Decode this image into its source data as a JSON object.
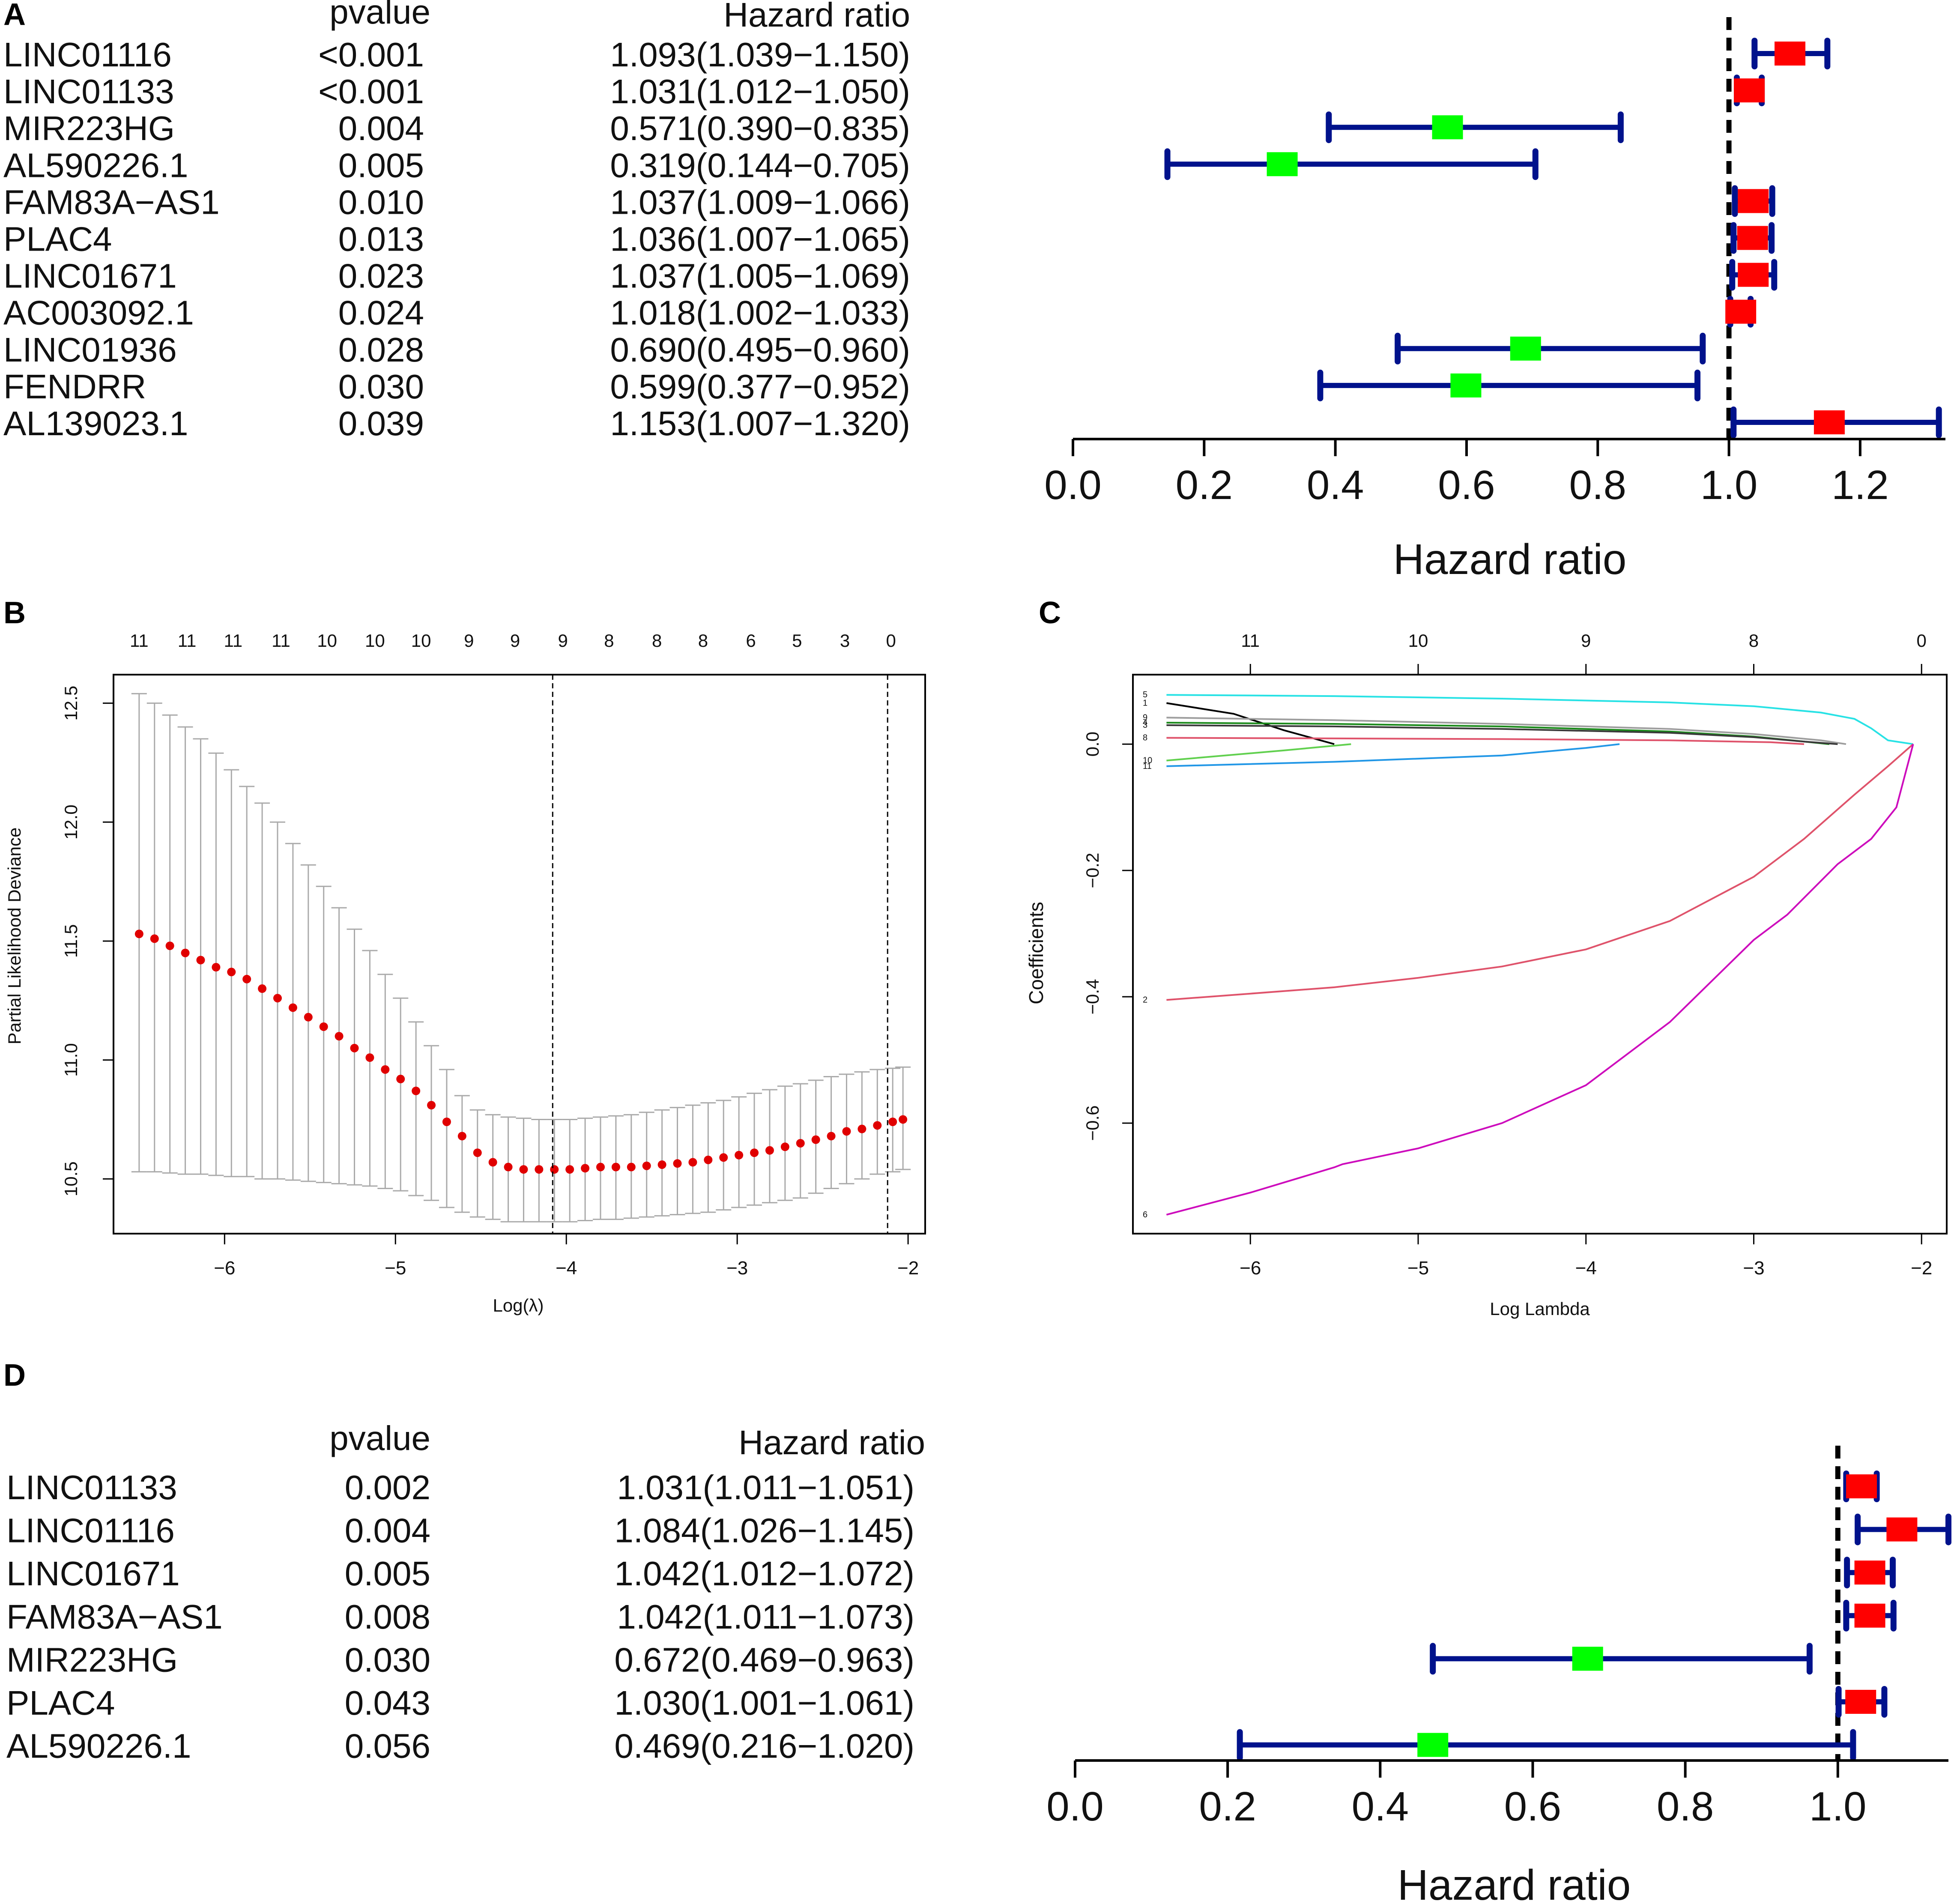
{
  "panels": {
    "A": {
      "letter": "A"
    },
    "B": {
      "letter": "B"
    },
    "C": {
      "letter": "C"
    },
    "D": {
      "letter": "D"
    }
  },
  "colors": {
    "ci_line": "#00128c",
    "risk_box": "#ff0000",
    "protective_box": "#00ff00",
    "cv_point": "#e00000",
    "cv_error": "#aaaaaa"
  },
  "chart_data": [
    {
      "id": "A",
      "type": "forest",
      "col_pvalue_header": "pvalue",
      "col_hr_header": "Hazard ratio",
      "xlabel": "Hazard ratio",
      "xlim": [
        0.0,
        1.33
      ],
      "xticks": [
        "0.0",
        "0.2",
        "0.4",
        "0.6",
        "0.8",
        "1.0",
        "1.2"
      ],
      "xtick_values": [
        0.0,
        0.2,
        0.4,
        0.6,
        0.8,
        1.0,
        1.2
      ],
      "reference_line": 1.0,
      "rows": [
        {
          "gene": "LINC01116",
          "pvalue": "<0.001",
          "hr_text": "1.093(1.039−1.150)",
          "hr": 1.093,
          "low": 1.039,
          "high": 1.15
        },
        {
          "gene": "LINC01133",
          "pvalue": "<0.001",
          "hr_text": "1.031(1.012−1.050)",
          "hr": 1.031,
          "low": 1.012,
          "high": 1.05
        },
        {
          "gene": "MIR223HG",
          "pvalue": "0.004",
          "hr_text": "0.571(0.390−0.835)",
          "hr": 0.571,
          "low": 0.39,
          "high": 0.835
        },
        {
          "gene": "AL590226.1",
          "pvalue": "0.005",
          "hr_text": "0.319(0.144−0.705)",
          "hr": 0.319,
          "low": 0.144,
          "high": 0.705
        },
        {
          "gene": "FAM83A−AS1",
          "pvalue": "0.010",
          "hr_text": "1.037(1.009−1.066)",
          "hr": 1.037,
          "low": 1.009,
          "high": 1.066
        },
        {
          "gene": "PLAC4",
          "pvalue": "0.013",
          "hr_text": "1.036(1.007−1.065)",
          "hr": 1.036,
          "low": 1.007,
          "high": 1.065
        },
        {
          "gene": "LINC01671",
          "pvalue": "0.023",
          "hr_text": "1.037(1.005−1.069)",
          "hr": 1.037,
          "low": 1.005,
          "high": 1.069
        },
        {
          "gene": "AC003092.1",
          "pvalue": "0.024",
          "hr_text": "1.018(1.002−1.033)",
          "hr": 1.018,
          "low": 1.002,
          "high": 1.033
        },
        {
          "gene": "LINC01936",
          "pvalue": "0.028",
          "hr_text": "0.690(0.495−0.960)",
          "hr": 0.69,
          "low": 0.495,
          "high": 0.96
        },
        {
          "gene": "FENDRR",
          "pvalue": "0.030",
          "hr_text": "0.599(0.377−0.952)",
          "hr": 0.599,
          "low": 0.377,
          "high": 0.952
        },
        {
          "gene": "AL139023.1",
          "pvalue": "0.039",
          "hr_text": "1.153(1.007−1.320)",
          "hr": 1.153,
          "low": 1.007,
          "high": 1.32
        }
      ]
    },
    {
      "id": "B",
      "type": "scatter",
      "subtype": "lasso-cv",
      "xlabel": "Log(λ)",
      "ylabel": "Partial Likelihood Deviance",
      "xlim": [
        -6.65,
        -1.9
      ],
      "ylim": [
        10.27,
        12.62
      ],
      "xticks": [
        "−6",
        "−5",
        "−4",
        "−3",
        "−2"
      ],
      "xtick_values": [
        -6,
        -5,
        -4,
        -3,
        -2
      ],
      "yticks": [
        "10.5",
        "11.0",
        "11.5",
        "12.0",
        "12.5"
      ],
      "ytick_values": [
        10.5,
        11.0,
        11.5,
        12.0,
        12.5
      ],
      "top_labels": [
        "11",
        "11",
        "11",
        "11",
        "10",
        "10",
        "10",
        "9",
        "9",
        "9",
        "8",
        "8",
        "8",
        "6",
        "5",
        "3",
        "0"
      ],
      "top_label_x": [
        -6.5,
        -6.22,
        -5.95,
        -5.67,
        -5.4,
        -5.12,
        -4.85,
        -4.57,
        -4.3,
        -4.02,
        -3.75,
        -3.47,
        -3.2,
        -2.92,
        -2.65,
        -2.37,
        -2.1
      ],
      "vlines": [
        -4.08,
        -2.12
      ],
      "x": [
        -6.5,
        -6.41,
        -6.32,
        -6.23,
        -6.14,
        -6.05,
        -5.96,
        -5.87,
        -5.78,
        -5.69,
        -5.6,
        -5.51,
        -5.42,
        -5.33,
        -5.24,
        -5.15,
        -5.06,
        -4.97,
        -4.88,
        -4.79,
        -4.7,
        -4.61,
        -4.52,
        -4.43,
        -4.34,
        -4.25,
        -4.16,
        -4.07,
        -3.98,
        -3.89,
        -3.8,
        -3.71,
        -3.62,
        -3.53,
        -3.44,
        -3.35,
        -3.26,
        -3.17,
        -3.08,
        -2.99,
        -2.9,
        -2.81,
        -2.72,
        -2.63,
        -2.54,
        -2.45,
        -2.36,
        -2.27,
        -2.18,
        -2.09,
        -2.03
      ],
      "y": [
        11.53,
        11.51,
        11.48,
        11.45,
        11.42,
        11.39,
        11.37,
        11.34,
        11.3,
        11.26,
        11.22,
        11.18,
        11.14,
        11.1,
        11.05,
        11.01,
        10.96,
        10.92,
        10.87,
        10.81,
        10.74,
        10.68,
        10.61,
        10.57,
        10.55,
        10.54,
        10.54,
        10.54,
        10.54,
        10.545,
        10.55,
        10.55,
        10.55,
        10.555,
        10.56,
        10.565,
        10.57,
        10.58,
        10.59,
        10.6,
        10.61,
        10.62,
        10.635,
        10.65,
        10.665,
        10.68,
        10.7,
        10.71,
        10.725,
        10.74,
        10.75
      ],
      "upper": [
        12.54,
        12.5,
        12.45,
        12.4,
        12.35,
        12.29,
        12.22,
        12.15,
        12.08,
        12.0,
        11.91,
        11.82,
        11.73,
        11.64,
        11.55,
        11.46,
        11.36,
        11.26,
        11.16,
        11.06,
        10.96,
        10.85,
        10.79,
        10.77,
        10.76,
        10.755,
        10.75,
        10.75,
        10.75,
        10.755,
        10.76,
        10.765,
        10.77,
        10.78,
        10.79,
        10.8,
        10.81,
        10.82,
        10.83,
        10.845,
        10.86,
        10.875,
        10.89,
        10.9,
        10.915,
        10.93,
        10.94,
        10.95,
        10.96,
        10.965,
        10.97
      ],
      "lower": [
        10.53,
        10.53,
        10.525,
        10.52,
        10.52,
        10.515,
        10.51,
        10.51,
        10.5,
        10.5,
        10.495,
        10.49,
        10.485,
        10.48,
        10.475,
        10.47,
        10.46,
        10.45,
        10.43,
        10.41,
        10.38,
        10.36,
        10.34,
        10.33,
        10.32,
        10.32,
        10.32,
        10.32,
        10.32,
        10.325,
        10.33,
        10.33,
        10.335,
        10.34,
        10.345,
        10.35,
        10.355,
        10.36,
        10.37,
        10.38,
        10.39,
        10.4,
        10.41,
        10.42,
        10.44,
        10.46,
        10.48,
        10.5,
        10.52,
        10.53,
        10.54
      ]
    },
    {
      "id": "C",
      "type": "line",
      "subtype": "lasso-path",
      "xlabel": "Log Lambda",
      "ylabel": "Coefficients",
      "xlim": [
        -6.7,
        -1.85
      ],
      "ylim": [
        -0.775,
        0.11
      ],
      "xticks": [
        "−6",
        "−5",
        "−4",
        "−3",
        "−2"
      ],
      "xtick_values": [
        -6,
        -5,
        -4,
        -3,
        -2
      ],
      "yticks": [
        "−0.6",
        "−0.4",
        "−0.2",
        "0.0"
      ],
      "ytick_values": [
        -0.6,
        -0.4,
        -0.2,
        0.0
      ],
      "top_labels": [
        "11",
        "10",
        "9",
        "8",
        "0"
      ],
      "top_label_x": [
        -6.0,
        -5.0,
        -4.0,
        -3.0,
        -2.0
      ],
      "series": [
        {
          "name": "5",
          "color": "#28e2e5",
          "x": [
            -6.5,
            -5.5,
            -4.5,
            -3.5,
            -3.0,
            -2.6,
            -2.4,
            -2.3,
            -2.2,
            -2.05
          ],
          "y": [
            0.078,
            0.076,
            0.072,
            0.066,
            0.06,
            0.05,
            0.04,
            0.025,
            0.006,
            0.0
          ]
        },
        {
          "name": "1",
          "color": "#000000",
          "x": [
            -6.5,
            -6.1,
            -5.8,
            -5.5
          ],
          "y": [
            0.065,
            0.048,
            0.022,
            0.0
          ]
        },
        {
          "name": "9",
          "color": "#9e9e9e",
          "x": [
            -6.5,
            -5.5,
            -4.5,
            -3.5,
            -3.0,
            -2.6,
            -2.45
          ],
          "y": [
            0.042,
            0.038,
            0.032,
            0.024,
            0.016,
            0.006,
            0.0
          ]
        },
        {
          "name": "4",
          "color": "#1b8a1b",
          "x": [
            -6.5,
            -5.5,
            -4.5,
            -3.5,
            -3.0,
            -2.7,
            -2.55
          ],
          "y": [
            0.034,
            0.032,
            0.028,
            0.02,
            0.012,
            0.004,
            0.0
          ]
        },
        {
          "name": "3",
          "color": "#3a3a3a",
          "x": [
            -6.5,
            -5.5,
            -4.5,
            -3.5,
            -3.0,
            -2.7,
            -2.5
          ],
          "y": [
            0.03,
            0.028,
            0.024,
            0.018,
            0.011,
            0.004,
            0.0
          ]
        },
        {
          "name": "8",
          "color": "#df536b",
          "x": [
            -6.5,
            -5.5,
            -4.5,
            -3.5,
            -2.9,
            -2.7
          ],
          "y": [
            0.01,
            0.009,
            0.008,
            0.006,
            0.003,
            0.0
          ]
        },
        {
          "name": "11",
          "color": "#2297e6",
          "x": [
            -6.5,
            -5.5,
            -4.5,
            -4.0,
            -3.8
          ],
          "y": [
            -0.035,
            -0.028,
            -0.018,
            -0.006,
            0.0
          ]
        },
        {
          "name": "10",
          "color": "#61d04f",
          "x": [
            -6.5,
            -5.8,
            -5.4
          ],
          "y": [
            -0.026,
            -0.01,
            0.0
          ]
        },
        {
          "name": "2",
          "color": "#df536b",
          "x": [
            -6.5,
            -6.0,
            -5.5,
            -5.0,
            -4.5,
            -4.0,
            -3.5,
            -3.0,
            -2.7,
            -2.4,
            -2.2,
            -2.05
          ],
          "y": [
            -0.405,
            -0.395,
            -0.385,
            -0.37,
            -0.352,
            -0.325,
            -0.28,
            -0.21,
            -0.15,
            -0.08,
            -0.035,
            0.0
          ]
        },
        {
          "name": "6",
          "color": "#cd0bbc",
          "x": [
            -6.5,
            -6.0,
            -5.5,
            -5.45,
            -5.0,
            -4.5,
            -4.0,
            -3.5,
            -3.0,
            -2.8,
            -2.5,
            -2.3,
            -2.15,
            -2.05
          ],
          "y": [
            -0.745,
            -0.71,
            -0.67,
            -0.665,
            -0.64,
            -0.6,
            -0.54,
            -0.44,
            -0.31,
            -0.27,
            -0.19,
            -0.15,
            -0.1,
            0.0
          ]
        }
      ]
    },
    {
      "id": "D",
      "type": "forest",
      "col_pvalue_header": "pvalue",
      "col_hr_header": "Hazard  ratio",
      "xlabel": "Hazard ratio",
      "xlim": [
        0.0,
        1.145
      ],
      "xticks": [
        "0.0",
        "0.2",
        "0.4",
        "0.6",
        "0.8",
        "1.0"
      ],
      "xtick_values": [
        0.0,
        0.2,
        0.4,
        0.6,
        0.8,
        1.0
      ],
      "reference_line": 1.0,
      "rows": [
        {
          "gene": "LINC01133",
          "pvalue": "0.002",
          "hr_text": "1.031(1.011−1.051)",
          "hr": 1.031,
          "low": 1.011,
          "high": 1.051
        },
        {
          "gene": "LINC01116",
          "pvalue": "0.004",
          "hr_text": "1.084(1.026−1.145)",
          "hr": 1.084,
          "low": 1.026,
          "high": 1.145
        },
        {
          "gene": "LINC01671",
          "pvalue": "0.005",
          "hr_text": "1.042(1.012−1.072)",
          "hr": 1.042,
          "low": 1.012,
          "high": 1.072
        },
        {
          "gene": "FAM83A−AS1",
          "pvalue": "0.008",
          "hr_text": "1.042(1.011−1.073)",
          "hr": 1.042,
          "low": 1.011,
          "high": 1.073
        },
        {
          "gene": "MIR223HG",
          "pvalue": "0.030",
          "hr_text": "0.672(0.469−0.963)",
          "hr": 0.672,
          "low": 0.469,
          "high": 0.963
        },
        {
          "gene": "PLAC4",
          "pvalue": "0.043",
          "hr_text": "1.030(1.001−1.061)",
          "hr": 1.03,
          "low": 1.001,
          "high": 1.061
        },
        {
          "gene": "AL590226.1",
          "pvalue": "0.056",
          "hr_text": "0.469(0.216−1.020)",
          "hr": 0.469,
          "low": 0.216,
          "high": 1.02
        }
      ]
    }
  ]
}
